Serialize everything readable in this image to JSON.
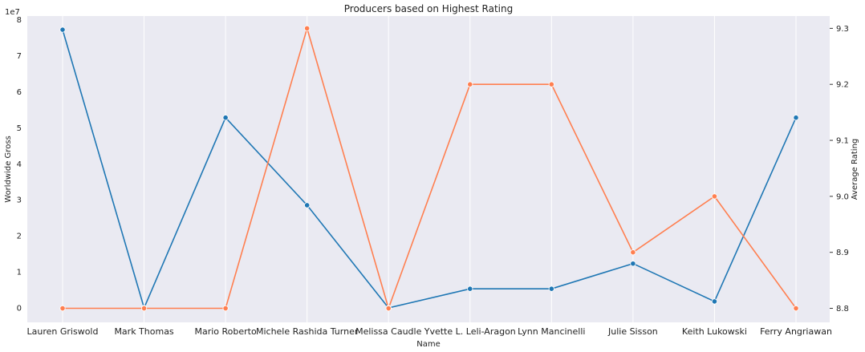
{
  "chart_data": {
    "type": "line",
    "title": "Producers based on Highest Rating",
    "xlabel": "Name",
    "categories": [
      "Lauren Griswold",
      "Mark Thomas",
      "Mario Roberto",
      "Michele Rashida Turner",
      "Melissa Caudle",
      "Yvette L. Leli-Aragon",
      "Lynn Mancinelli",
      "Julie Sisson",
      "Keith Lukowski",
      "Ferry Angriawan"
    ],
    "left_axis": {
      "label": "Worldwide Gross",
      "exponent_label": "1e7",
      "ylim": [
        -4000000,
        81000000
      ],
      "ticks": [
        0,
        10000000,
        20000000,
        30000000,
        40000000,
        50000000,
        60000000,
        70000000,
        80000000
      ],
      "tick_labels": [
        "0",
        "1",
        "2",
        "3",
        "4",
        "5",
        "6",
        "7",
        "8"
      ]
    },
    "right_axis": {
      "label": "Average Rating",
      "ylim": [
        8.775,
        9.322
      ],
      "ticks": [
        8.8,
        8.9,
        9.0,
        9.1,
        9.2,
        9.3
      ],
      "tick_labels": [
        "8.8",
        "8.9",
        "9.0",
        "9.1",
        "9.2",
        "9.3"
      ]
    },
    "series": [
      {
        "axis": "left",
        "color": "#1f77b4",
        "values": [
          77200000,
          0,
          52800000,
          28500000,
          0,
          5300000,
          5300000,
          12300000,
          1800000,
          52800000
        ]
      },
      {
        "axis": "right",
        "color": "#ff7f50",
        "values": [
          8.8,
          8.8,
          8.8,
          9.3,
          8.8,
          9.2,
          9.2,
          8.9,
          9.0,
          8.8
        ]
      }
    ],
    "grid": true,
    "background": "#eaeaf2"
  }
}
